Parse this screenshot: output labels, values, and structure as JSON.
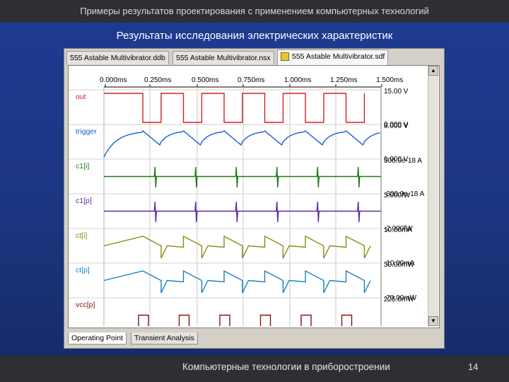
{
  "header": {
    "title": "Примеры результатов проектирования с применением компьютерных технологий",
    "subtitle": "Результаты исследования электрических характеристик"
  },
  "window": {
    "tabs": [
      {
        "label": "555 Astable Multivibrator.ddb",
        "active": false
      },
      {
        "label": "555 Astable Multivibrator.nsx",
        "active": false
      },
      {
        "label": "555 Astable Multivibrator.sdf",
        "active": true
      }
    ],
    "bottom_tabs": [
      {
        "label": "Operating Point",
        "active": true
      },
      {
        "label": "Transient Analysis",
        "active": false
      }
    ]
  },
  "time_axis": [
    "0.000ms",
    "0.250ms",
    "0.500ms",
    "0.750ms",
    "1.000ms",
    "1.250ms",
    "1.500ms"
  ],
  "signals": [
    {
      "name": "out",
      "color": "#d62020",
      "max": "15.00 V",
      "min": "0.000 V"
    },
    {
      "name": "trigger",
      "color": "#1a5fd6",
      "max": "8.000 V",
      "min": "0.000 V"
    },
    {
      "name": "c1[i]",
      "color": "#1d7a1d",
      "max": "500.0e-18 A",
      "min": "-300.0e-18 A"
    },
    {
      "name": "c1[p]",
      "color": "#5a2aa8",
      "max": "3.000fW",
      "min": "-2.000fW"
    },
    {
      "name": "ct[i]",
      "color": "#8a8a12",
      "max": "10.00mA",
      "min": "-10.00mA"
    },
    {
      "name": "ct[p]",
      "color": "#1a7fc2",
      "max": "30.00mW",
      "min": "-70.00mW"
    },
    {
      "name": "vcc[p]",
      "color": "#8c1010",
      "max": "225.0mW",
      "min": ""
    }
  ],
  "footer": {
    "text": "Компьютерные технологии в приборостроении",
    "page": "14"
  },
  "icons": {
    "tab_icon": "document-icon",
    "scroll_up": "arrow-up-icon",
    "scroll_down": "arrow-down-icon"
  }
}
